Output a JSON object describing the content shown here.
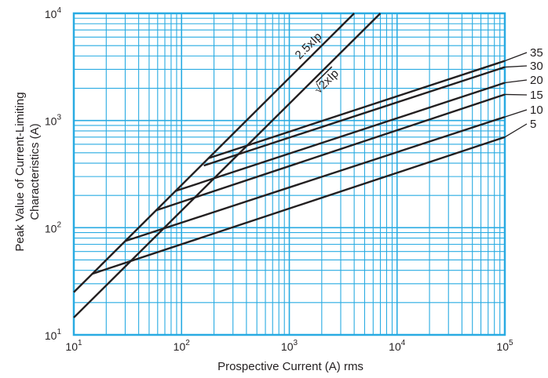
{
  "chart_data": {
    "type": "line",
    "title": "",
    "xlabel": "Prospective Current (A) rms",
    "ylabel_lines": [
      "Peak Value of Current-Limiting",
      "Characteristics (A)"
    ],
    "x_scale": "log",
    "y_scale": "log",
    "xlim": [
      10,
      100000
    ],
    "ylim": [
      10,
      10000
    ],
    "grid": true,
    "x_ticks": [
      {
        "base": "10",
        "exp": "1"
      },
      {
        "base": "10",
        "exp": "2"
      },
      {
        "base": "10",
        "exp": "3"
      },
      {
        "base": "10",
        "exp": "4"
      },
      {
        "base": "10",
        "exp": "5"
      }
    ],
    "y_ticks": [
      {
        "base": "10",
        "exp": "1"
      },
      {
        "base": "10",
        "exp": "2"
      },
      {
        "base": "10",
        "exp": "3"
      },
      {
        "base": "10",
        "exp": "4"
      }
    ],
    "reference_lines": [
      {
        "name": "2.5xIp",
        "x": [
          10,
          4000
        ],
        "y": [
          25,
          10000
        ]
      },
      {
        "name": "√2xIp",
        "radical": "√",
        "rest": "2xIp",
        "x": [
          10,
          7000
        ],
        "y": [
          14.5,
          10000
        ]
      }
    ],
    "series": [
      {
        "name": "35",
        "x": [
          178,
          100000
        ],
        "y": [
          445,
          3600
        ]
      },
      {
        "name": "30",
        "x": [
          161,
          100000
        ],
        "y": [
          380,
          3150
        ]
      },
      {
        "name": "20",
        "x": [
          88,
          100000
        ],
        "y": [
          220,
          2250
        ]
      },
      {
        "name": "15",
        "x": [
          58,
          100000
        ],
        "y": [
          145,
          1750
        ]
      },
      {
        "name": "10",
        "x": [
          30,
          100000
        ],
        "y": [
          75,
          1080
        ]
      },
      {
        "name": "5",
        "x": [
          14.7,
          100000
        ],
        "y": [
          37,
          700
        ]
      }
    ],
    "colors": {
      "grid": "#29abe2",
      "lines": "#231f20",
      "text": "#231f20"
    }
  }
}
